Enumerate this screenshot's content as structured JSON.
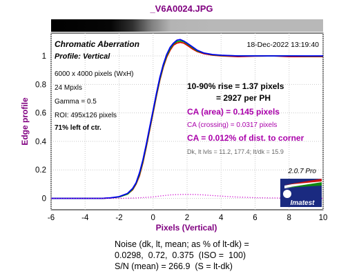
{
  "chart_data": {
    "type": "line",
    "title": "_V6A0024.JPG",
    "xlabel": "Pixels (Vertical)",
    "ylabel": "Edge profile",
    "xlim": [
      -6,
      10
    ],
    "ylim": [
      -0.08,
      1.16
    ],
    "x_ticks": [
      "-6",
      "-4",
      "-2",
      "0",
      "2",
      "4",
      "6",
      "8",
      "10"
    ],
    "x_tick_values": [
      -6,
      -4,
      -2,
      0,
      2,
      4,
      6,
      8,
      10
    ],
    "y_ticks": [
      "0",
      "0.2",
      "0.4",
      "0.6",
      "0.8",
      "1"
    ],
    "y_tick_values": [
      0,
      0.2,
      0.4,
      0.6,
      0.8,
      1
    ],
    "grid": true,
    "series": [
      {
        "color": "#dd0000",
        "x": [
          -6,
          -3,
          -2.5,
          -2,
          -1.5,
          -1.2,
          -1,
          -0.8,
          -0.6,
          -0.4,
          -0.2,
          0,
          0.2,
          0.4,
          0.6,
          0.8,
          1,
          1.2,
          1.4,
          1.6,
          1.8,
          2,
          2.3,
          2.6,
          3,
          3.5,
          4,
          5,
          6,
          7,
          8,
          9,
          10
        ],
        "values": [
          0,
          0,
          0.003,
          0.01,
          0.03,
          0.06,
          0.1,
          0.16,
          0.25,
          0.36,
          0.48,
          0.6,
          0.72,
          0.83,
          0.92,
          0.99,
          1.04,
          1.075,
          1.09,
          1.095,
          1.09,
          1.075,
          1.05,
          1.03,
          1.015,
          1.005,
          1.0,
          0.995,
          0.998,
          1.0,
          0.995,
          0.995,
          0.995
        ]
      },
      {
        "color": "#00aa00",
        "x": [
          -6,
          -3,
          -2.5,
          -2,
          -1.5,
          -1.2,
          -1,
          -0.8,
          -0.6,
          -0.4,
          -0.2,
          0,
          0.2,
          0.4,
          0.6,
          0.8,
          1,
          1.2,
          1.4,
          1.6,
          1.8,
          2,
          2.3,
          2.6,
          3,
          3.5,
          4,
          5,
          6,
          7,
          8,
          9,
          10
        ],
        "values": [
          0,
          0,
          0.003,
          0.01,
          0.03,
          0.065,
          0.105,
          0.17,
          0.26,
          0.37,
          0.49,
          0.61,
          0.73,
          0.84,
          0.93,
          1.0,
          1.05,
          1.085,
          1.1,
          1.105,
          1.1,
          1.085,
          1.06,
          1.035,
          1.02,
          1.008,
          1.003,
          1.0,
          1.0,
          1.0,
          1.0,
          0.998,
          0.998
        ]
      },
      {
        "color": "#0000ee",
        "x": [
          -6,
          -3,
          -2.5,
          -2,
          -1.5,
          -1.2,
          -1,
          -0.8,
          -0.6,
          -0.4,
          -0.2,
          0,
          0.2,
          0.4,
          0.6,
          0.8,
          1,
          1.2,
          1.4,
          1.6,
          1.8,
          2,
          2.3,
          2.6,
          3,
          3.5,
          4,
          5,
          6,
          7,
          8,
          9,
          10
        ],
        "values": [
          0,
          0,
          0.004,
          0.012,
          0.035,
          0.07,
          0.11,
          0.18,
          0.27,
          0.38,
          0.5,
          0.62,
          0.74,
          0.85,
          0.94,
          1.01,
          1.06,
          1.09,
          1.11,
          1.115,
          1.105,
          1.09,
          1.065,
          1.04,
          1.02,
          1.01,
          1.005,
          1.0,
          1.0,
          1.0,
          1.0,
          1.0,
          1.0
        ]
      },
      {
        "color": "#cc00cc",
        "style": "dotted",
        "x": [
          -6,
          -2,
          -1,
          0,
          0.5,
          1,
          1.5,
          2,
          2.5,
          3,
          3.5,
          4,
          4.5,
          5,
          5.5,
          6,
          7,
          8,
          9,
          10
        ],
        "values": [
          0,
          0,
          0.003,
          0.01,
          0.018,
          0.024,
          0.027,
          0.028,
          0.027,
          0.024,
          0.02,
          0.016,
          0.012,
          0.009,
          0.007,
          0.005,
          0.003,
          0.002,
          0.001,
          0
        ]
      }
    ]
  },
  "annotations": {
    "panel_title": "Chromatic Aberration",
    "profile": "Profile: Vertical",
    "timestamp": "18-Dec-2022 13:19:40",
    "pixels": "6000 x 4000 pixels (WxH)",
    "mpxls": "24 Mpxls",
    "gamma": "Gamma = 0.5",
    "roi": "ROI: 495x126 pixels",
    "location": "71% left of ctr.",
    "rise": "10-90% rise = 1.37 pixels",
    "per_ph": "= 2927 per PH",
    "ca_area": "CA (area) = 0.145 pixels",
    "ca_crossing": "CA (crossing) = 0.0317 pixels",
    "ca_pct": "CA = 0.012% of dist. to corner",
    "dk_levels": "Dk, lt lvls = 11.2, 177.4;  lt/dk = 15.9",
    "version": "2.0.7  Pro",
    "logo_text": "Imatest"
  },
  "footer": {
    "line1": "Noise (dk, lt, mean; as % of lt-dk) =",
    "line2": "0.0298,  0.72,  0.375  (ISO =  100)",
    "line3": "S/N (mean) = 266.9  (S = lt-dk)"
  },
  "colors": {
    "title_purple": "#800080",
    "ca_magenta": "#aa00aa",
    "dark_navy": "#1a1a6e",
    "logo_blue": "#1a2a80",
    "logo_red": "#cc1111",
    "logo_green": "#118811"
  }
}
